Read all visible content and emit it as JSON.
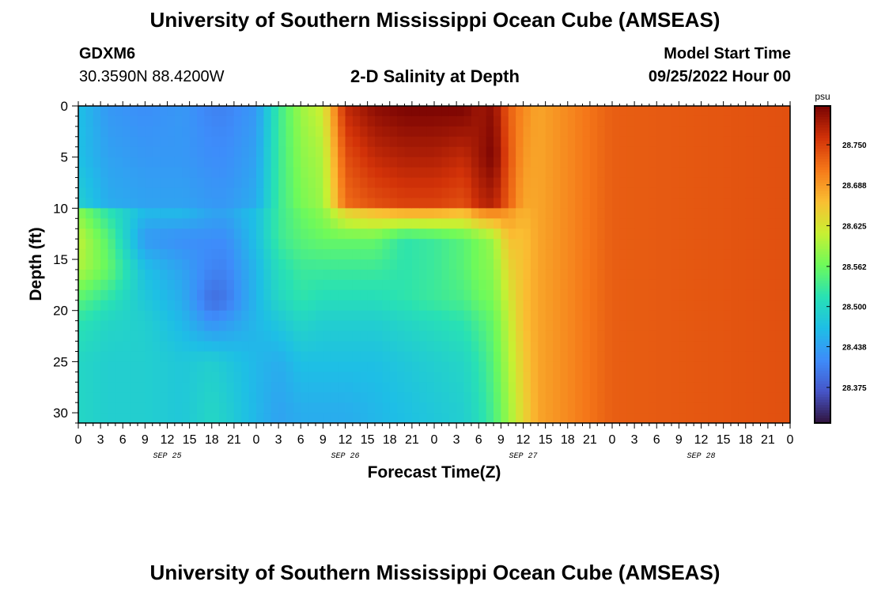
{
  "header": {
    "title": "University of Southern Mississippi Ocean Cube (AMSEAS)",
    "station": "GDXM6",
    "coords": "30.3590N  88.4200W",
    "subtitle": "2-D Salinity at Depth",
    "start_label": "Model Start Time",
    "start_value": "09/25/2022 Hour 00"
  },
  "footer": {
    "title": "University of Southern Mississippi Ocean Cube (AMSEAS)"
  },
  "chart_data": {
    "type": "heatmap",
    "xlabel": "Forecast Time(Z)",
    "ylabel": "Depth (ft)",
    "x_ticks": [
      "0",
      "3",
      "6",
      "9",
      "12",
      "15",
      "18",
      "21",
      "0",
      "3",
      "6",
      "9",
      "12",
      "15",
      "18",
      "21",
      "0",
      "3",
      "6",
      "9",
      "12",
      "15",
      "18",
      "21",
      "0",
      "3",
      "6",
      "9",
      "12",
      "15",
      "18",
      "21",
      "0"
    ],
    "x_range_hours": [
      0,
      96
    ],
    "date_labels": [
      {
        "label": "SEP 25",
        "hour": 12
      },
      {
        "label": "SEP 26",
        "hour": 36
      },
      {
        "label": "SEP 27",
        "hour": 60
      },
      {
        "label": "SEP 28",
        "hour": 84
      }
    ],
    "y_ticks": [
      "0",
      "5",
      "10",
      "15",
      "20",
      "25",
      "30"
    ],
    "y_range_ft": [
      0,
      31
    ],
    "y_inverted": true,
    "colorbar": {
      "unit": "psu",
      "ticks": [
        "28.750",
        "28.688",
        "28.625",
        "28.562",
        "28.500",
        "28.438",
        "28.375"
      ],
      "range": [
        28.32,
        28.81
      ],
      "colormap": "turbo"
    },
    "field_keyframes_hours": [
      0,
      4,
      9,
      14,
      18,
      20,
      24,
      27,
      30,
      33,
      36,
      40,
      44,
      48,
      52,
      54,
      56,
      58,
      60,
      62,
      66,
      72,
      96
    ],
    "field_keyframes_depth_ft": [
      0,
      5,
      9.5,
      10.5,
      13,
      16,
      19,
      21,
      25,
      30
    ],
    "field_values": [
      [
        28.47,
        28.43,
        28.42,
        28.43,
        28.41,
        28.41,
        28.43,
        28.53,
        28.59,
        28.62,
        28.77,
        28.8,
        28.81,
        28.81,
        28.81,
        28.79,
        28.8,
        28.73,
        28.7,
        28.68,
        28.7,
        28.73,
        28.74
      ],
      [
        28.47,
        28.44,
        28.43,
        28.43,
        28.42,
        28.42,
        28.44,
        28.53,
        28.58,
        28.6,
        28.74,
        28.77,
        28.78,
        28.78,
        28.77,
        28.79,
        28.81,
        28.74,
        28.69,
        28.68,
        28.7,
        28.73,
        28.74
      ],
      [
        28.49,
        28.45,
        28.44,
        28.44,
        28.43,
        28.43,
        28.45,
        28.53,
        28.57,
        28.59,
        28.72,
        28.74,
        28.75,
        28.75,
        28.74,
        28.77,
        28.78,
        28.73,
        28.68,
        28.68,
        28.7,
        28.73,
        28.74
      ],
      [
        28.58,
        28.52,
        28.46,
        28.46,
        28.44,
        28.44,
        28.47,
        28.53,
        28.56,
        28.58,
        28.64,
        28.66,
        28.67,
        28.67,
        28.66,
        28.69,
        28.7,
        28.69,
        28.67,
        28.68,
        28.7,
        28.73,
        28.74
      ],
      [
        28.61,
        28.55,
        28.43,
        28.42,
        28.42,
        28.42,
        28.47,
        28.53,
        28.55,
        28.56,
        28.56,
        28.56,
        28.52,
        28.53,
        28.55,
        28.57,
        28.59,
        28.66,
        28.66,
        28.68,
        28.7,
        28.73,
        28.74
      ],
      [
        28.6,
        28.56,
        28.47,
        28.44,
        28.41,
        28.41,
        28.46,
        28.51,
        28.53,
        28.53,
        28.53,
        28.53,
        28.52,
        28.53,
        28.55,
        28.57,
        28.58,
        28.64,
        28.66,
        28.68,
        28.7,
        28.73,
        28.74
      ],
      [
        28.55,
        28.52,
        28.48,
        28.45,
        28.39,
        28.4,
        28.46,
        28.5,
        28.52,
        28.51,
        28.51,
        28.51,
        28.52,
        28.53,
        28.54,
        28.56,
        28.57,
        28.62,
        28.66,
        28.68,
        28.7,
        28.73,
        28.74
      ],
      [
        28.52,
        28.5,
        28.49,
        28.46,
        28.42,
        28.43,
        28.46,
        28.48,
        28.5,
        28.49,
        28.49,
        28.49,
        28.5,
        28.51,
        28.52,
        28.54,
        28.56,
        28.61,
        28.66,
        28.68,
        28.7,
        28.73,
        28.74
      ],
      [
        28.5,
        28.49,
        28.49,
        28.48,
        28.49,
        28.48,
        28.46,
        28.45,
        28.47,
        28.47,
        28.47,
        28.47,
        28.48,
        28.49,
        28.5,
        28.52,
        28.55,
        28.6,
        28.65,
        28.68,
        28.7,
        28.73,
        28.74
      ],
      [
        28.5,
        28.49,
        28.49,
        28.48,
        28.5,
        28.49,
        28.46,
        28.44,
        28.45,
        28.45,
        28.45,
        28.46,
        28.47,
        28.48,
        28.49,
        28.51,
        28.54,
        28.59,
        28.64,
        28.68,
        28.7,
        28.73,
        28.74
      ]
    ]
  }
}
